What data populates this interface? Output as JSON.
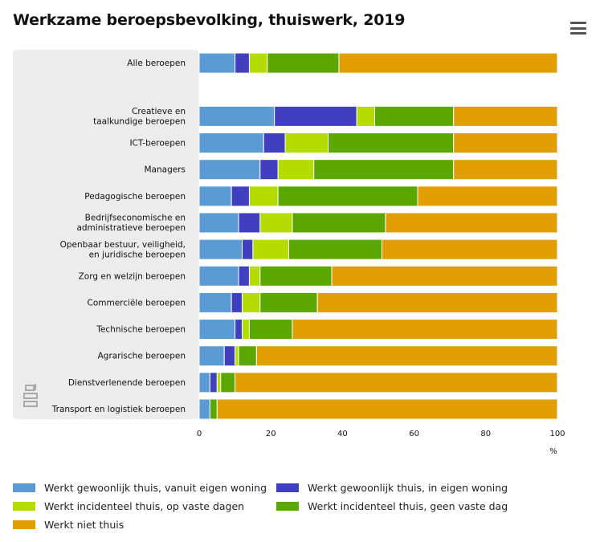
{
  "chart_data": {
    "type": "bar",
    "orientation": "horizontal",
    "stacked": true,
    "title": "Werkzame beroepsbevolking, thuiswerk, 2019",
    "xlabel": "",
    "unit": "%",
    "xlim": [
      0,
      100
    ],
    "xticks": [
      "0",
      "20",
      "40",
      "60",
      "80",
      "100"
    ],
    "grid": false,
    "legend_position": "bottom",
    "categories": [
      "Alle beroepen",
      "",
      "Creatieve en taalkundige beroepen",
      "ICT-beroepen",
      "Managers",
      "Pedagogische beroepen",
      "Bedrijfseconomische en administratieve beroepen",
      "Openbaar bestuur, veiligheid, en juridische beroepen",
      "Zorg en welzijn beroepen",
      "Commerciële beroepen",
      "Technische beroepen",
      "Agrarische beroepen",
      "Dienstverlenende beroepen",
      "Transport en logistiek beroepen"
    ],
    "category_lines": [
      [
        "Alle beroepen"
      ],
      [],
      [
        "Creatieve en",
        "taalkundige beroepen"
      ],
      [
        "ICT-beroepen"
      ],
      [
        "Managers"
      ],
      [
        "Pedagogische beroepen"
      ],
      [
        "Bedrijfseconomische en",
        "administratieve beroepen"
      ],
      [
        "Openbaar bestuur, veiligheid,",
        "en juridische beroepen"
      ],
      [
        "Zorg en welzijn beroepen"
      ],
      [
        "Commerciële beroepen"
      ],
      [
        "Technische beroepen"
      ],
      [
        "Agrarische beroepen"
      ],
      [
        "Dienstverlenende beroepen"
      ],
      [
        "Transport en logistiek beroepen"
      ]
    ],
    "series": [
      {
        "name": "Werkt gewoonlijk thuis, vanuit eigen woning",
        "color": "#5b9bd5",
        "values": [
          10,
          null,
          21,
          18,
          17,
          9,
          11,
          12,
          11,
          9,
          10,
          7,
          3,
          3
        ]
      },
      {
        "name": "Werkt gewoonlijk thuis, in eigen woning",
        "color": "#3f3fbf",
        "values": [
          4,
          null,
          23,
          6,
          5,
          5,
          6,
          3,
          3,
          3,
          2,
          3,
          2,
          0
        ]
      },
      {
        "name": "Werkt incidenteel thuis, op vaste dagen",
        "color": "#b4dc00",
        "values": [
          5,
          null,
          5,
          12,
          10,
          8,
          9,
          10,
          3,
          5,
          2,
          1,
          1,
          0
        ]
      },
      {
        "name": "Werkt incidenteel thuis, geen vaste dag",
        "color": "#5aa700",
        "values": [
          20,
          null,
          22,
          35,
          39,
          39,
          26,
          26,
          20,
          16,
          12,
          5,
          4,
          2
        ]
      },
      {
        "name": "Werkt niet thuis",
        "color": "#e09e00",
        "values": [
          61,
          null,
          29,
          29,
          29,
          39,
          48,
          49,
          63,
          67,
          74,
          84,
          90,
          95
        ]
      }
    ]
  }
}
